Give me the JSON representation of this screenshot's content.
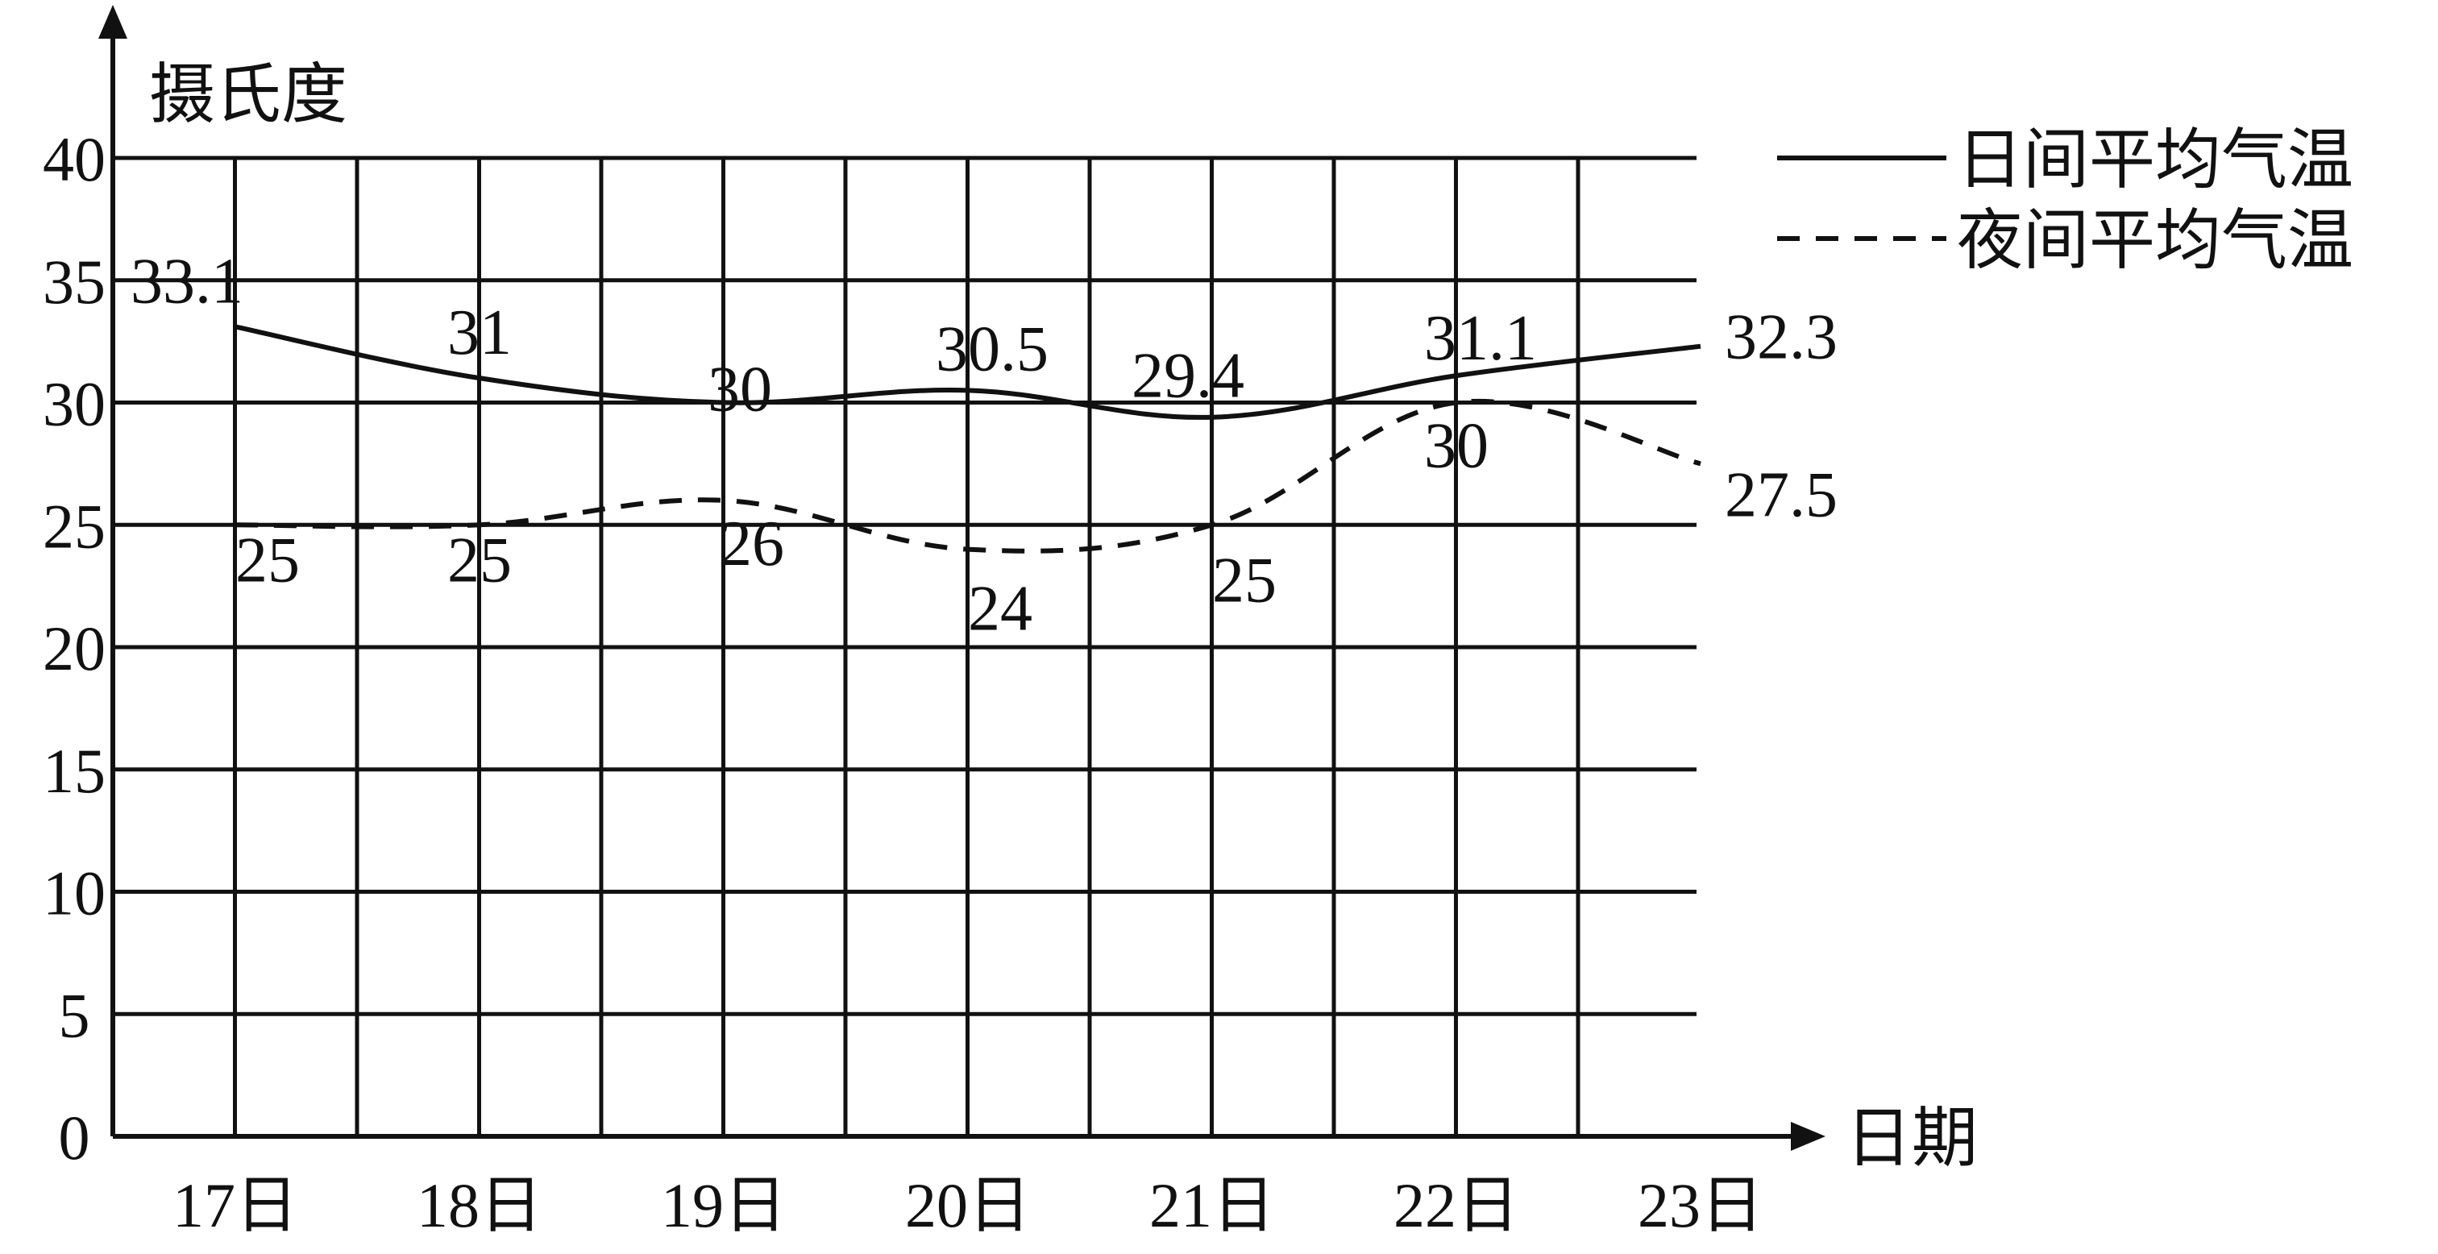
{
  "chart_data": {
    "type": "line",
    "title": "",
    "ylabel": "摄氏度",
    "xlabel": "日期",
    "categories": [
      "17日",
      "18日",
      "19日",
      "20日",
      "21日",
      "22日",
      "23日"
    ],
    "ylim": [
      0,
      40
    ],
    "yticks": [
      "0",
      "5",
      "10",
      "15",
      "20",
      "25",
      "30",
      "35",
      "40"
    ],
    "grid": true,
    "legend_position": "top-right",
    "series": [
      {
        "name": "日间平均气温",
        "line_style": "solid",
        "color": "#111111",
        "values": [
          33.1,
          31,
          30,
          30.5,
          29.4,
          31.1,
          32.3
        ],
        "labels": [
          "33.1",
          "31",
          "30",
          "30.5",
          "29.4",
          "31.1",
          "32.3"
        ]
      },
      {
        "name": "夜间平均气温",
        "line_style": "dashed",
        "color": "#111111",
        "values": [
          25,
          25,
          26,
          24,
          25,
          30,
          27.5
        ],
        "labels": [
          "25",
          "25",
          "26",
          "24",
          "25",
          "30",
          "27.5"
        ]
      }
    ]
  }
}
